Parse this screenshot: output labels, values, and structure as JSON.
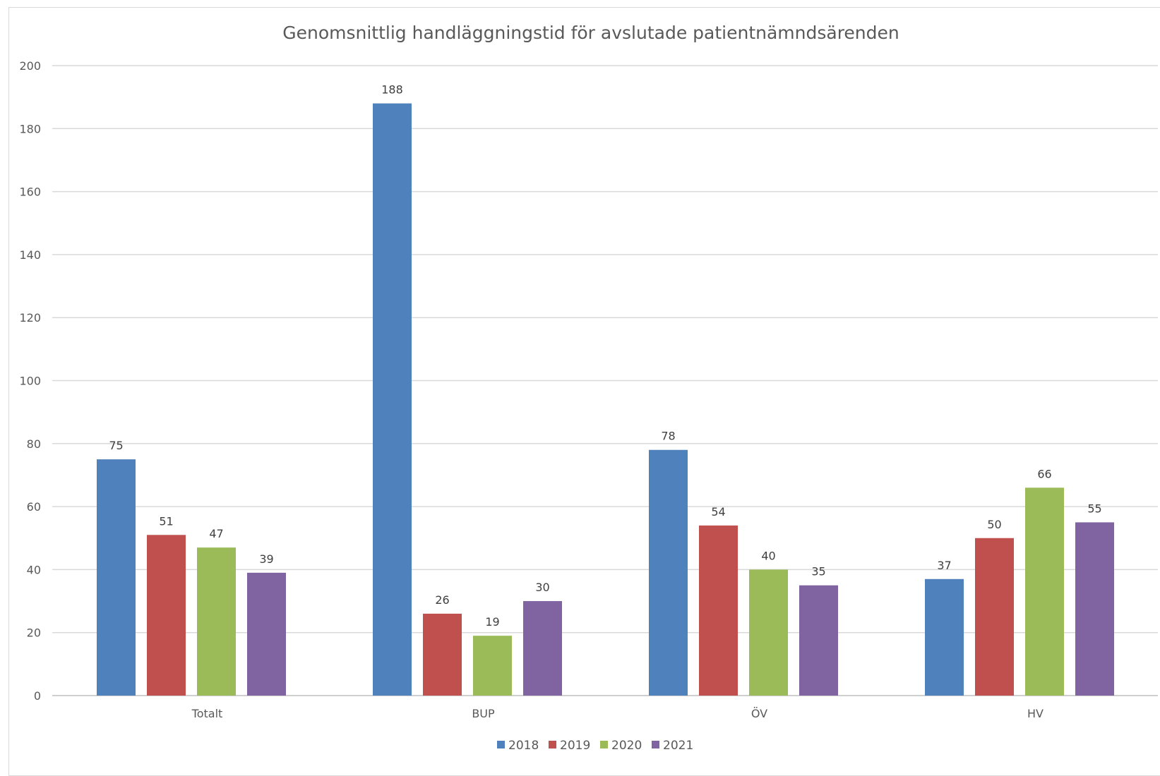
{
  "chart_data": {
    "type": "bar",
    "title": "Genomsnittlig handläggningstid för avslutade patientnämndsärenden",
    "xlabel": "",
    "ylabel": "",
    "categories": [
      "Totalt",
      "BUP",
      "ÖV",
      "HV"
    ],
    "series": [
      {
        "name": "2018",
        "color": "#4f81bd",
        "values": [
          75,
          188,
          78,
          37
        ]
      },
      {
        "name": "2019",
        "color": "#c0504d",
        "values": [
          51,
          26,
          54,
          50
        ]
      },
      {
        "name": "2020",
        "color": "#9bbb59",
        "values": [
          47,
          19,
          40,
          66
        ]
      },
      {
        "name": "2021",
        "color": "#8064a2",
        "values": [
          39,
          30,
          35,
          55
        ]
      }
    ],
    "ylim": [
      0,
      200
    ],
    "yticks": [
      0,
      20,
      40,
      60,
      80,
      100,
      120,
      140,
      160,
      180,
      200
    ],
    "grid": true,
    "legend_position": "bottom",
    "data_labels": true
  }
}
